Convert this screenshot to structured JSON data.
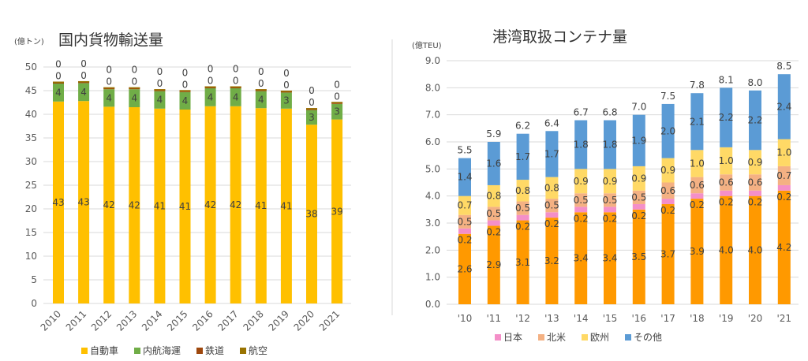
{
  "chart_data": [
    {
      "type": "bar",
      "stacked": true,
      "title": "国内貨物輸送量",
      "ylabel": "(億トン)",
      "ylim": [
        0,
        50
      ],
      "yticks": [
        0,
        5,
        10,
        15,
        20,
        25,
        30,
        35,
        40,
        45,
        50
      ],
      "grid": true,
      "legend_position": "bottom",
      "categories": [
        "2010",
        "2011",
        "2012",
        "2013",
        "2014",
        "2015",
        "2016",
        "2017",
        "2018",
        "2019",
        "2020",
        "2021"
      ],
      "series": [
        {
          "name": "自動車",
          "color": "#FFC000",
          "values": [
            42.7,
            42.8,
            41.6,
            41.5,
            41.2,
            41.0,
            41.7,
            41.7,
            41.3,
            41.2,
            37.8,
            38.9
          ]
        },
        {
          "name": "内航海運",
          "color": "#70AD47",
          "values": [
            3.8,
            3.8,
            3.7,
            3.8,
            3.7,
            3.7,
            3.8,
            3.8,
            3.6,
            3.4,
            3.1,
            3.3
          ]
        },
        {
          "name": "鉄道",
          "color": "#9E480E",
          "values": [
            0.4,
            0.4,
            0.4,
            0.4,
            0.4,
            0.4,
            0.4,
            0.4,
            0.4,
            0.4,
            0.4,
            0.4
          ]
        },
        {
          "name": "航空",
          "color": "#997300",
          "values": [
            0.01,
            0.01,
            0.01,
            0.01,
            0.01,
            0.01,
            0.01,
            0.01,
            0.01,
            0.01,
            0.01,
            0.01
          ]
        }
      ]
    },
    {
      "type": "bar",
      "stacked": true,
      "title": "港湾取扱コンテナ量",
      "ylabel": "(億TEU)",
      "ylim": [
        0,
        9
      ],
      "yticks": [
        "0.0",
        "1.0",
        "2.0",
        "3.0",
        "4.0",
        "5.0",
        "6.0",
        "7.0",
        "8.0",
        "9.0"
      ],
      "grid": true,
      "legend_position": "bottom",
      "categories": [
        "'10",
        "'11",
        "'12",
        "'13",
        "'14",
        "'15",
        "'16",
        "'17",
        "'18",
        "'19",
        "'20",
        "'21"
      ],
      "totals": [
        5.5,
        5.9,
        6.2,
        6.4,
        6.7,
        6.8,
        7.0,
        7.5,
        7.8,
        8.1,
        8.0,
        8.5
      ],
      "series": [
        {
          "color": "#FF9900",
          "values": [
            2.6,
            2.9,
            3.1,
            3.2,
            3.4,
            3.4,
            3.5,
            3.7,
            3.9,
            4.0,
            4.0,
            4.2
          ]
        },
        {
          "name": "日本",
          "color": "#F48FC8",
          "values": [
            0.2,
            0.2,
            0.2,
            0.2,
            0.2,
            0.2,
            0.2,
            0.2,
            0.2,
            0.2,
            0.2,
            0.2
          ]
        },
        {
          "name": "北米",
          "color": "#F4B183",
          "values": [
            0.5,
            0.5,
            0.5,
            0.5,
            0.5,
            0.5,
            0.5,
            0.6,
            0.6,
            0.6,
            0.6,
            0.7
          ]
        },
        {
          "name": "欧州",
          "color": "#FFD966",
          "values": [
            0.7,
            0.8,
            0.8,
            0.8,
            0.9,
            0.9,
            0.9,
            0.9,
            1.0,
            1.0,
            0.9,
            1.0
          ]
        },
        {
          "name": "その他",
          "color": "#5B9BD5",
          "values": [
            1.4,
            1.6,
            1.7,
            1.7,
            1.8,
            1.8,
            1.9,
            2.0,
            2.1,
            2.2,
            2.2,
            2.4
          ]
        }
      ]
    }
  ]
}
